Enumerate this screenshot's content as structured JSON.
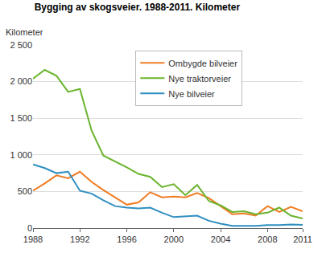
{
  "chart_data": {
    "type": "line",
    "title": "Bygging av skogsveier. 1988-2011. Kilometer",
    "y_label": "Kilometer",
    "x": [
      1988,
      1989,
      1990,
      1991,
      1992,
      1993,
      1994,
      1995,
      1996,
      1997,
      1998,
      1999,
      2000,
      2001,
      2002,
      2003,
      2004,
      2005,
      2006,
      2007,
      2008,
      2009,
      2010,
      2011
    ],
    "series": [
      {
        "name": "Ombygde bilveier",
        "color": "#f07c24",
        "values": [
          510,
          610,
          720,
          680,
          770,
          630,
          520,
          420,
          320,
          350,
          490,
          420,
          430,
          420,
          480,
          410,
          300,
          190,
          200,
          170,
          300,
          220,
          290,
          230
        ]
      },
      {
        "name": "Nye traktorveier",
        "color": "#6ab42d",
        "values": [
          2040,
          2160,
          2080,
          1860,
          1900,
          1330,
          990,
          910,
          830,
          740,
          700,
          560,
          600,
          450,
          590,
          370,
          310,
          220,
          230,
          190,
          210,
          280,
          170,
          130
        ]
      },
      {
        "name": "Nye bilveier",
        "color": "#2f8fc0",
        "values": [
          870,
          820,
          750,
          770,
          510,
          470,
          380,
          300,
          280,
          270,
          280,
          210,
          150,
          160,
          170,
          100,
          60,
          30,
          30,
          30,
          40,
          40,
          50,
          45
        ]
      }
    ],
    "xlim": [
      1988,
      2011
    ],
    "xticks": [
      1988,
      1992,
      1996,
      2000,
      2004,
      2008,
      2011
    ],
    "ylim": [
      0,
      2500
    ],
    "yticks": [
      0,
      500,
      {
        "value": 1000,
        "label": "1 000"
      },
      {
        "value": 1500,
        "label": "1 500"
      },
      {
        "value": 2000,
        "label": "2 000"
      },
      {
        "value": 2500,
        "label": "2 500"
      }
    ],
    "grid": true,
    "legend": "top"
  }
}
